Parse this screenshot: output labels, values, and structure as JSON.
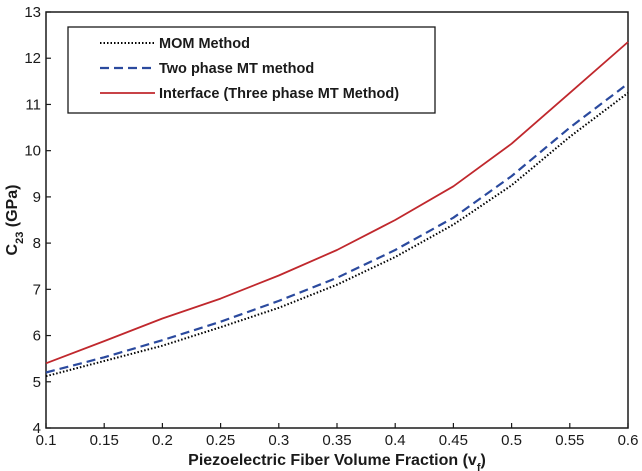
{
  "chart_data": {
    "type": "line",
    "xlabel": {
      "main": "Piezoelectric Fiber Volume Fraction (v",
      "sub": "f",
      "tail": ")"
    },
    "ylabel": {
      "main": "C",
      "sub": "23",
      "tail": " (GPa)"
    },
    "xlim": [
      0.1,
      0.6
    ],
    "ylim": [
      4,
      13
    ],
    "xticks": [
      0.1,
      0.15,
      0.2,
      0.25,
      0.3,
      0.35,
      0.4,
      0.45,
      0.5,
      0.55,
      0.6
    ],
    "xtick_labels": [
      "0.1",
      "0.15",
      "0.2",
      "0.25",
      "0.3",
      "0.35",
      "0.4",
      "0.45",
      "0.5",
      "0.55",
      "0.6"
    ],
    "yticks": [
      4,
      5,
      6,
      7,
      8,
      9,
      10,
      11,
      12,
      13
    ],
    "ytick_labels": [
      "4",
      "5",
      "6",
      "7",
      "8",
      "9",
      "10",
      "11",
      "12",
      "13"
    ],
    "grid": false,
    "legend_position": "top-left",
    "x": [
      0.1,
      0.15,
      0.2,
      0.25,
      0.3,
      0.35,
      0.4,
      0.45,
      0.5,
      0.55,
      0.6
    ],
    "series": [
      {
        "name": "MOM Method",
        "style": "dotted",
        "color": "#000000",
        "values": [
          5.12,
          5.45,
          5.78,
          6.18,
          6.6,
          7.1,
          7.7,
          8.4,
          9.25,
          10.3,
          11.25
        ]
      },
      {
        "name": "Two phase MT method",
        "style": "dashed",
        "color": "#2b4a9e",
        "values": [
          5.2,
          5.53,
          5.9,
          6.3,
          6.75,
          7.25,
          7.85,
          8.55,
          9.45,
          10.5,
          11.45
        ]
      },
      {
        "name": "Interface (Three phase MT Method)",
        "style": "solid",
        "color": "#c0282d",
        "values": [
          5.4,
          5.88,
          6.37,
          6.8,
          7.3,
          7.85,
          8.5,
          9.23,
          10.15,
          11.25,
          12.35
        ]
      }
    ]
  }
}
